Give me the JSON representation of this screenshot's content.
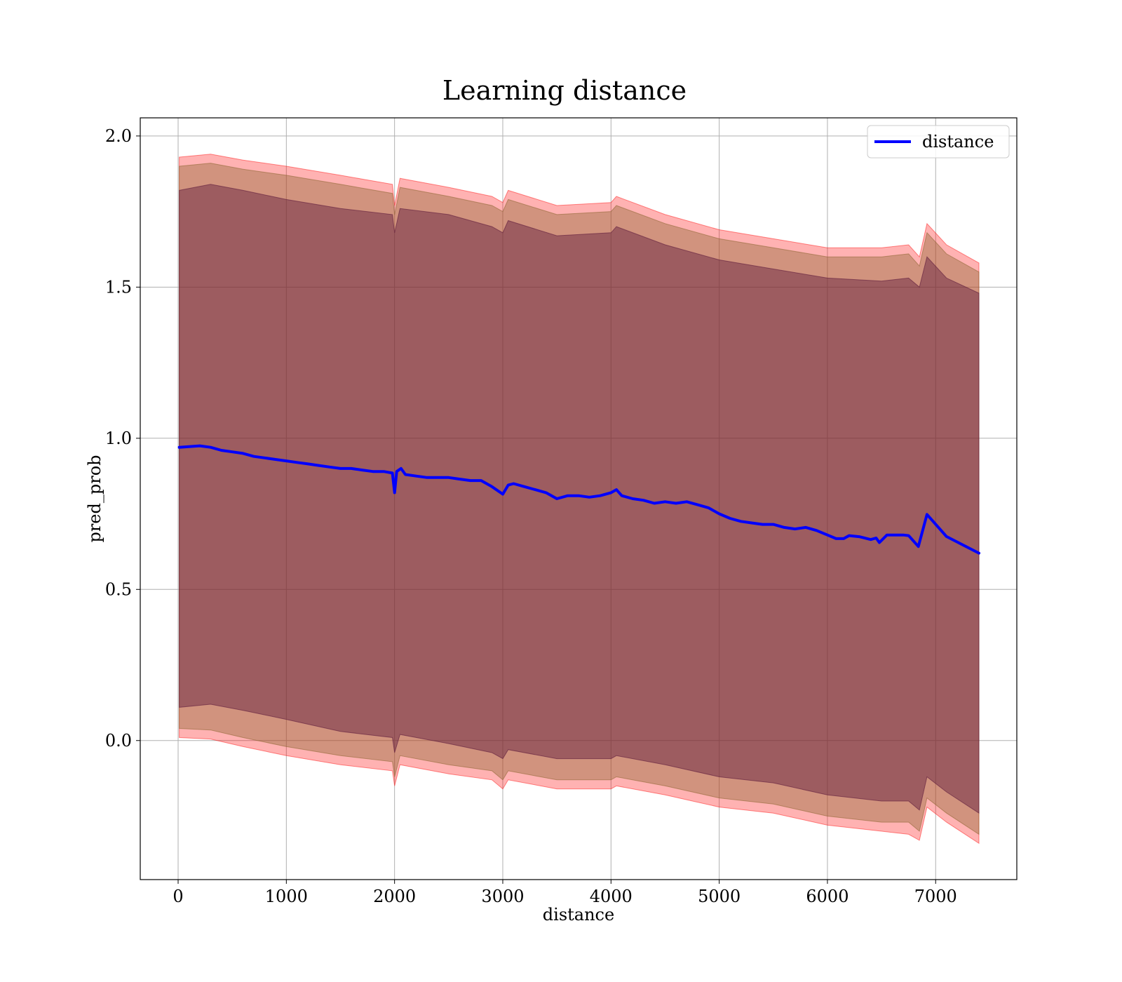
{
  "chart_data": {
    "type": "line",
    "title": "Learning distance",
    "xlabel": "distance",
    "ylabel": "pred_prob",
    "xlim": [
      -350,
      7750
    ],
    "ylim": [
      -0.46,
      2.06
    ],
    "xticks": [
      0,
      1000,
      2000,
      3000,
      4000,
      5000,
      6000,
      7000
    ],
    "yticks": [
      0.0,
      0.5,
      1.0,
      1.5,
      2.0
    ],
    "xtick_labels": [
      "0",
      "1000",
      "2000",
      "3000",
      "4000",
      "5000",
      "6000",
      "7000"
    ],
    "ytick_labels": [
      "0.0",
      "0.5",
      "1.0",
      "1.5",
      "2.0"
    ],
    "grid": true,
    "legend_position": "top-right",
    "legend": [
      {
        "label": "distance",
        "color": "#0000ff"
      }
    ],
    "series": [
      {
        "name": "distance",
        "color": "#0000ff",
        "points": [
          [
            10,
            0.97
          ],
          [
            200,
            0.975
          ],
          [
            300,
            0.97
          ],
          [
            400,
            0.96
          ],
          [
            500,
            0.955
          ],
          [
            600,
            0.95
          ],
          [
            700,
            0.94
          ],
          [
            800,
            0.935
          ],
          [
            900,
            0.93
          ],
          [
            1000,
            0.925
          ],
          [
            1100,
            0.92
          ],
          [
            1200,
            0.915
          ],
          [
            1300,
            0.91
          ],
          [
            1400,
            0.905
          ],
          [
            1500,
            0.9
          ],
          [
            1600,
            0.9
          ],
          [
            1700,
            0.895
          ],
          [
            1800,
            0.89
          ],
          [
            1900,
            0.89
          ],
          [
            1980,
            0.885
          ],
          [
            2000,
            0.82
          ],
          [
            2020,
            0.89
          ],
          [
            2060,
            0.9
          ],
          [
            2100,
            0.88
          ],
          [
            2200,
            0.875
          ],
          [
            2300,
            0.87
          ],
          [
            2400,
            0.87
          ],
          [
            2500,
            0.87
          ],
          [
            2600,
            0.865
          ],
          [
            2700,
            0.86
          ],
          [
            2800,
            0.86
          ],
          [
            2900,
            0.84
          ],
          [
            3000,
            0.815
          ],
          [
            3050,
            0.845
          ],
          [
            3100,
            0.85
          ],
          [
            3200,
            0.84
          ],
          [
            3300,
            0.83
          ],
          [
            3400,
            0.82
          ],
          [
            3500,
            0.8
          ],
          [
            3600,
            0.81
          ],
          [
            3700,
            0.81
          ],
          [
            3800,
            0.805
          ],
          [
            3900,
            0.81
          ],
          [
            4000,
            0.82
          ],
          [
            4050,
            0.83
          ],
          [
            4100,
            0.81
          ],
          [
            4200,
            0.8
          ],
          [
            4300,
            0.795
          ],
          [
            4400,
            0.785
          ],
          [
            4500,
            0.79
          ],
          [
            4600,
            0.785
          ],
          [
            4700,
            0.79
          ],
          [
            4800,
            0.78
          ],
          [
            4900,
            0.77
          ],
          [
            5000,
            0.75
          ],
          [
            5100,
            0.735
          ],
          [
            5200,
            0.725
          ],
          [
            5300,
            0.72
          ],
          [
            5400,
            0.715
          ],
          [
            5500,
            0.715
          ],
          [
            5600,
            0.705
          ],
          [
            5700,
            0.7
          ],
          [
            5800,
            0.705
          ],
          [
            5900,
            0.695
          ],
          [
            6000,
            0.68
          ],
          [
            6080,
            0.668
          ],
          [
            6150,
            0.668
          ],
          [
            6200,
            0.678
          ],
          [
            6300,
            0.674
          ],
          [
            6400,
            0.665
          ],
          [
            6450,
            0.67
          ],
          [
            6480,
            0.655
          ],
          [
            6550,
            0.68
          ],
          [
            6700,
            0.68
          ],
          [
            6750,
            0.678
          ],
          [
            6840,
            0.642
          ],
          [
            6920,
            0.748
          ],
          [
            7100,
            0.675
          ],
          [
            7400,
            0.62
          ]
        ]
      }
    ],
    "bands": [
      {
        "color": "#ff0000",
        "opacity": 0.3,
        "x": [
          10,
          300,
          600,
          1000,
          1500,
          1980,
          2000,
          2050,
          2500,
          2900,
          3000,
          3050,
          3500,
          4000,
          4050,
          4500,
          5000,
          5500,
          6000,
          6500,
          6750,
          6850,
          6920,
          7100,
          7400
        ],
        "upper": [
          1.93,
          1.94,
          1.92,
          1.9,
          1.87,
          1.84,
          1.77,
          1.86,
          1.83,
          1.8,
          1.78,
          1.82,
          1.77,
          1.78,
          1.8,
          1.74,
          1.69,
          1.66,
          1.63,
          1.63,
          1.64,
          1.6,
          1.71,
          1.64,
          1.58
        ],
        "lower": [
          0.01,
          0.005,
          -0.02,
          -0.05,
          -0.08,
          -0.1,
          -0.15,
          -0.08,
          -0.11,
          -0.13,
          -0.16,
          -0.13,
          -0.16,
          -0.16,
          -0.15,
          -0.18,
          -0.22,
          -0.24,
          -0.28,
          -0.3,
          -0.31,
          -0.33,
          -0.22,
          -0.27,
          -0.34
        ]
      },
      {
        "color": "#8b6530",
        "opacity": 0.4,
        "x": [
          10,
          300,
          600,
          1000,
          1500,
          1980,
          2000,
          2050,
          2500,
          2900,
          3000,
          3050,
          3500,
          4000,
          4050,
          4500,
          5000,
          5500,
          6000,
          6500,
          6750,
          6850,
          6920,
          7100,
          7400
        ],
        "upper": [
          1.9,
          1.91,
          1.89,
          1.87,
          1.84,
          1.81,
          1.74,
          1.83,
          1.8,
          1.77,
          1.75,
          1.79,
          1.74,
          1.75,
          1.77,
          1.71,
          1.66,
          1.63,
          1.6,
          1.6,
          1.61,
          1.57,
          1.68,
          1.61,
          1.55
        ],
        "lower": [
          0.04,
          0.035,
          0.01,
          -0.02,
          -0.05,
          -0.07,
          -0.12,
          -0.05,
          -0.08,
          -0.1,
          -0.13,
          -0.1,
          -0.13,
          -0.13,
          -0.12,
          -0.15,
          -0.19,
          -0.21,
          -0.25,
          -0.27,
          -0.27,
          -0.3,
          -0.19,
          -0.24,
          -0.31
        ]
      },
      {
        "color": "#5e1a3c",
        "opacity": 0.45,
        "x": [
          10,
          300,
          600,
          1000,
          1500,
          1980,
          2000,
          2050,
          2500,
          2900,
          3000,
          3050,
          3500,
          4000,
          4050,
          4500,
          5000,
          5500,
          6000,
          6500,
          6750,
          6850,
          6920,
          7100,
          7400
        ],
        "upper": [
          1.82,
          1.84,
          1.82,
          1.79,
          1.76,
          1.74,
          1.68,
          1.76,
          1.74,
          1.7,
          1.68,
          1.72,
          1.67,
          1.68,
          1.7,
          1.64,
          1.59,
          1.56,
          1.53,
          1.52,
          1.53,
          1.5,
          1.6,
          1.53,
          1.48
        ],
        "lower": [
          0.11,
          0.12,
          0.1,
          0.07,
          0.03,
          0.01,
          -0.04,
          0.02,
          -0.01,
          -0.04,
          -0.06,
          -0.03,
          -0.06,
          -0.06,
          -0.05,
          -0.08,
          -0.12,
          -0.14,
          -0.18,
          -0.2,
          -0.2,
          -0.23,
          -0.12,
          -0.17,
          -0.24
        ]
      }
    ]
  }
}
